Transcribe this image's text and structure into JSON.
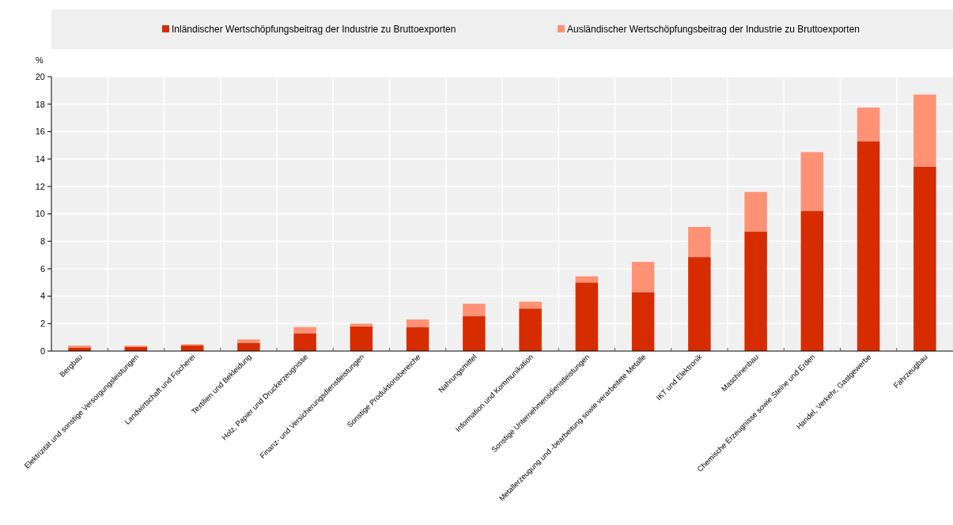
{
  "chart_data": {
    "type": "bar",
    "stacked": true,
    "ylabel": "%",
    "categories": [
      "Bergbau",
      "Elektrizität und sonstige Versorgungsleistungen",
      "Landwirtschaft und Fischerei",
      "Textilien und Bekleidung",
      "Holz, Papier und Druckerzeugnisse",
      "Finanz- und Versicherungsdienstleistungen",
      "Sonstige Produktionsbereiche",
      "Nahrungsmittel",
      "Information und Kommunikation",
      "Sonstige Unternehmensdienstleistungen",
      "Metallerzeugung und -bearbeitung sowie verarbeitete Metalle",
      "IKT und Elektronik",
      "Maschinenbau",
      "Chemische Erzeugnisse sowie Steine und Erden",
      "Handel, Verkehr, Gastgewerbe",
      "Fahrzeugbau"
    ],
    "series": [
      {
        "name": "Inländischer Wertschöpfungsbeitrag der Industrie zu Bruttoexporten",
        "color": "#d72c00",
        "values": [
          0.25,
          0.3,
          0.4,
          0.6,
          1.3,
          1.8,
          1.75,
          2.55,
          3.1,
          5.0,
          4.3,
          6.85,
          8.7,
          10.2,
          15.3,
          13.45
        ]
      },
      {
        "name": "Ausländischer Wertschöpfungsbeitrag der Industrie zu Bruttoexporten",
        "color": "#ff9175",
        "values": [
          0.15,
          0.1,
          0.1,
          0.25,
          0.45,
          0.2,
          0.55,
          0.9,
          0.5,
          0.45,
          2.2,
          2.2,
          2.9,
          4.3,
          2.45,
          5.25
        ]
      }
    ],
    "ylim": [
      0,
      20
    ],
    "yticks": [
      0,
      2,
      4,
      6,
      8,
      10,
      12,
      14,
      16,
      18,
      20
    ],
    "grid": true,
    "legend": "top"
  }
}
